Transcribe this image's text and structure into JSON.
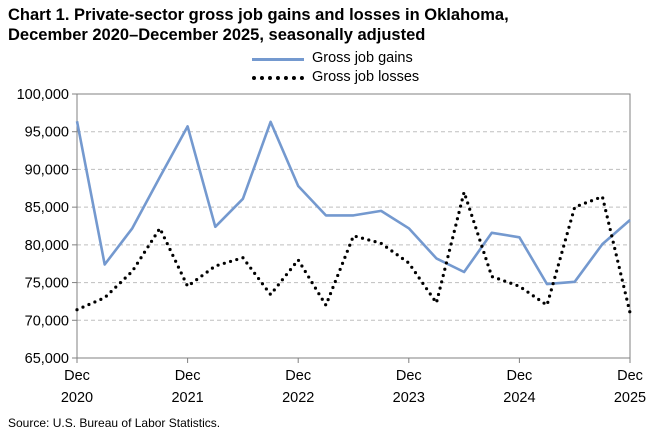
{
  "title_line1": "Chart 1. Private-sector gross job gains and losses in Oklahoma,",
  "title_line2": "December 2020–December 2025, seasonally adjusted",
  "source": "Source: U.S. Bureau of Labor Statistics.",
  "colors": {
    "gains": "#7499cf",
    "losses": "#000000",
    "grid": "#bfbfbf",
    "axis": "#808080"
  },
  "chart_data": {
    "type": "line",
    "title": "Private-sector gross job gains and losses in Oklahoma, December 2020–December 2025, seasonally adjusted",
    "ylim": [
      65000,
      100000
    ],
    "yticks": [
      "65,000",
      "70,000",
      "75,000",
      "80,000",
      "85,000",
      "90,000",
      "95,000",
      "100,000"
    ],
    "xticks": [
      {
        "line1": "Dec",
        "line2": "2020"
      },
      {
        "line1": "Dec",
        "line2": "2021"
      },
      {
        "line1": "Dec",
        "line2": "2022"
      },
      {
        "line1": "Dec",
        "line2": "2023"
      },
      {
        "line1": "Dec",
        "line2": "2024"
      },
      {
        "line1": "Dec",
        "line2": "2025"
      }
    ],
    "x": [
      "Dec 2020",
      "Mar 2021",
      "Jun 2021",
      "Sep 2021",
      "Dec 2021",
      "Mar 2022",
      "Jun 2022",
      "Sep 2022",
      "Dec 2022",
      "Mar 2023",
      "Jun 2023",
      "Sep 2023",
      "Dec 2023",
      "Mar 2024",
      "Jun 2024",
      "Sep 2024",
      "Dec 2024",
      "Mar 2025",
      "Jun 2025",
      "Sep 2025",
      "Dec 2025"
    ],
    "grid": true,
    "legend_position": "top",
    "series": [
      {
        "name": "Gross job gains",
        "style": "solid",
        "values": [
          96400,
          77400,
          82200,
          89000,
          95700,
          82400,
          86100,
          96300,
          87800,
          83900,
          83900,
          84500,
          82200,
          78200,
          76400,
          81600,
          81000,
          74800,
          75100,
          80100,
          83300
        ]
      },
      {
        "name": "Gross job losses",
        "style": "dotted",
        "values": [
          71400,
          73000,
          76500,
          82200,
          74500,
          77200,
          78300,
          73400,
          78000,
          72000,
          81200,
          80200,
          77600,
          72300,
          87000,
          75800,
          74500,
          72000,
          85000,
          86400,
          71000
        ]
      }
    ]
  }
}
